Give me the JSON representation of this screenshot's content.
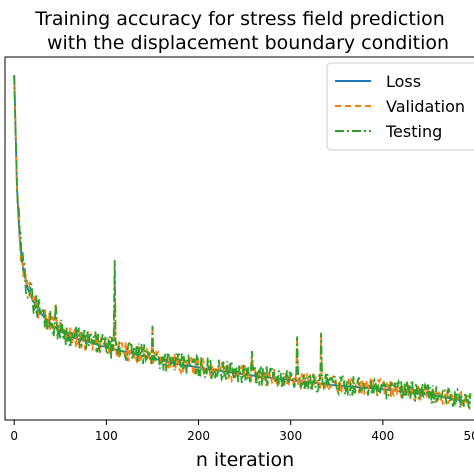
{
  "chart_data": {
    "type": "line",
    "title_lines": [
      "Training accuracy for stress field prediction",
      "with the displacement boundary condition"
    ],
    "xlabel": "n iteration",
    "ylabel": "",
    "xlim": [
      -10,
      500
    ],
    "x_ticks": [
      0,
      100,
      200,
      300,
      400,
      500
    ],
    "x_tick_labels": [
      "0",
      "100",
      "200",
      "300",
      "400",
      "500"
    ],
    "ylim": [
      0,
      1.0
    ],
    "legend_position": "top-right",
    "series": [
      {
        "name": "Loss",
        "color": "#1f77b4",
        "dash": "solid"
      },
      {
        "name": "Validation",
        "color": "#ff7f0e",
        "dash": "dashed"
      },
      {
        "name": "Testing",
        "color": "#2ca02c",
        "dash": "dashdot"
      }
    ],
    "curve": {
      "x": [
        0,
        1,
        2,
        3,
        5,
        7,
        10,
        15,
        20,
        30,
        40,
        50,
        60,
        80,
        100,
        125,
        150,
        175,
        200,
        250,
        300,
        350,
        400,
        450,
        495
      ],
      "y": [
        0.95,
        0.85,
        0.74,
        0.64,
        0.54,
        0.47,
        0.41,
        0.36,
        0.33,
        0.29,
        0.265,
        0.245,
        0.23,
        0.215,
        0.2,
        0.185,
        0.17,
        0.155,
        0.145,
        0.125,
        0.11,
        0.095,
        0.085,
        0.07,
        0.05
      ]
    },
    "spikes": [
      {
        "x": 109,
        "y": 0.44
      },
      {
        "x": 307,
        "y": 0.23
      },
      {
        "x": 333,
        "y": 0.24
      },
      {
        "x": 258,
        "y": 0.19
      },
      {
        "x": 150,
        "y": 0.26
      },
      {
        "x": 45,
        "y": 0.32
      }
    ]
  }
}
